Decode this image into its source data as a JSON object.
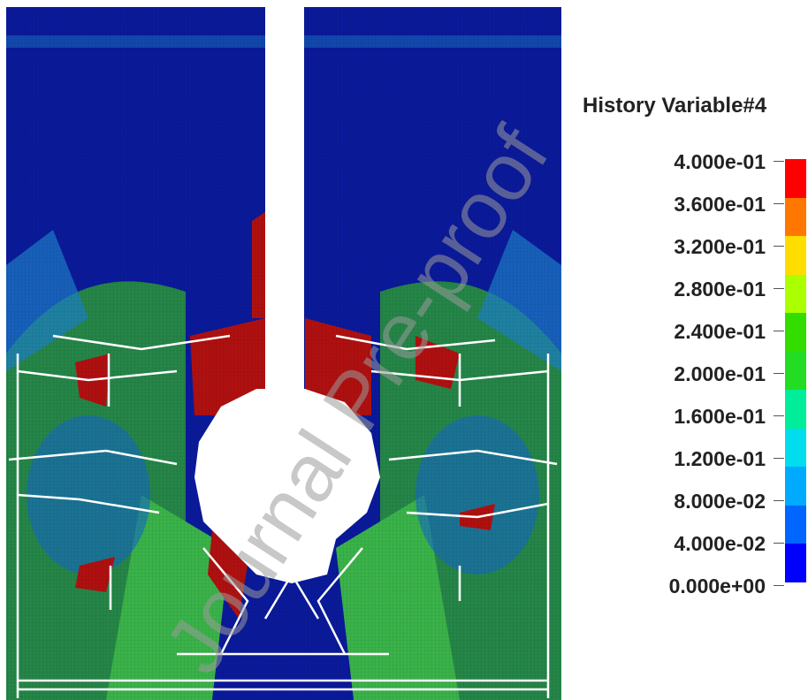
{
  "legend": {
    "title": "History Variable#4",
    "ticks": [
      "4.000e-01",
      "3.600e-01",
      "3.200e-01",
      "2.800e-01",
      "2.400e-01",
      "2.000e-01",
      "1.600e-01",
      "1.200e-01",
      "8.000e-02",
      "4.000e-02",
      "0.000e+00"
    ],
    "colors": [
      "#ff0000",
      "#ff7700",
      "#ffdd00",
      "#aaff00",
      "#33dd00",
      "#22dd22",
      "#00ee99",
      "#00ddee",
      "#00aaff",
      "#0066ff",
      "#0000ff"
    ]
  },
  "field_colors": {
    "background": "#0a1a9a",
    "damage_high": "#b01010",
    "damage_mid": "#1d9d3a",
    "damage_low": "#1570c0",
    "crack": "#ffffff"
  },
  "watermark": "Journal Pre-proof"
}
